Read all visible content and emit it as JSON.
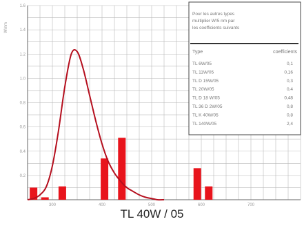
{
  "caption": "TL 40W / 05",
  "chart_data": {
    "type": "bar",
    "title": "",
    "xlabel": "",
    "ylabel": "W/nm",
    "xlim": [
      250,
      800
    ],
    "ylim": [
      0,
      1.6
    ],
    "x_ticks": [
      "300",
      "400",
      "500",
      "600",
      "700"
    ],
    "y_ticks": [
      "0.2",
      "0.4",
      "0.6",
      "0.8",
      "1.0",
      "1.2",
      "1.4",
      "1.6"
    ],
    "curve": {
      "x": [
        250,
        262,
        275,
        288,
        300,
        312,
        325,
        338,
        350,
        362,
        375,
        388,
        400,
        412,
        425,
        438,
        450,
        462,
        475,
        488,
        500,
        512,
        525
      ],
      "y": [
        0,
        0.01,
        0.04,
        0.11,
        0.28,
        0.56,
        0.93,
        1.2,
        1.22,
        1.08,
        0.86,
        0.64,
        0.46,
        0.32,
        0.22,
        0.15,
        0.1,
        0.07,
        0.04,
        0.02,
        0.01,
        0,
        0
      ]
    },
    "bars": {
      "x": [
        262,
        285,
        320,
        405,
        440,
        592,
        615
      ],
      "y": [
        0.1,
        0.02,
        0.11,
        0.34,
        0.51,
        0.26,
        0.11
      ]
    },
    "legend": {
      "note": "Pour les autres types multiplier W/5 nm par les coefficients suivants",
      "col_type": "Type",
      "col_coef": "coefficients",
      "rows": [
        {
          "type": "TL 6W/05",
          "coef": "0,1"
        },
        {
          "type": "TL 11W/05",
          "coef": "0,16"
        },
        {
          "type": "TL D 15W/05",
          "coef": "0,3"
        },
        {
          "type": "TL 20W/05",
          "coef": "0,4"
        },
        {
          "type": "TL D 18 W/05",
          "coef": "0,48"
        },
        {
          "type": "TL 36 D 2W/05",
          "coef": "0,8"
        },
        {
          "type": "TL K 40W/05",
          "coef": "0,8"
        },
        {
          "type": "TL 140W/05",
          "coef": "2,4"
        }
      ]
    }
  }
}
